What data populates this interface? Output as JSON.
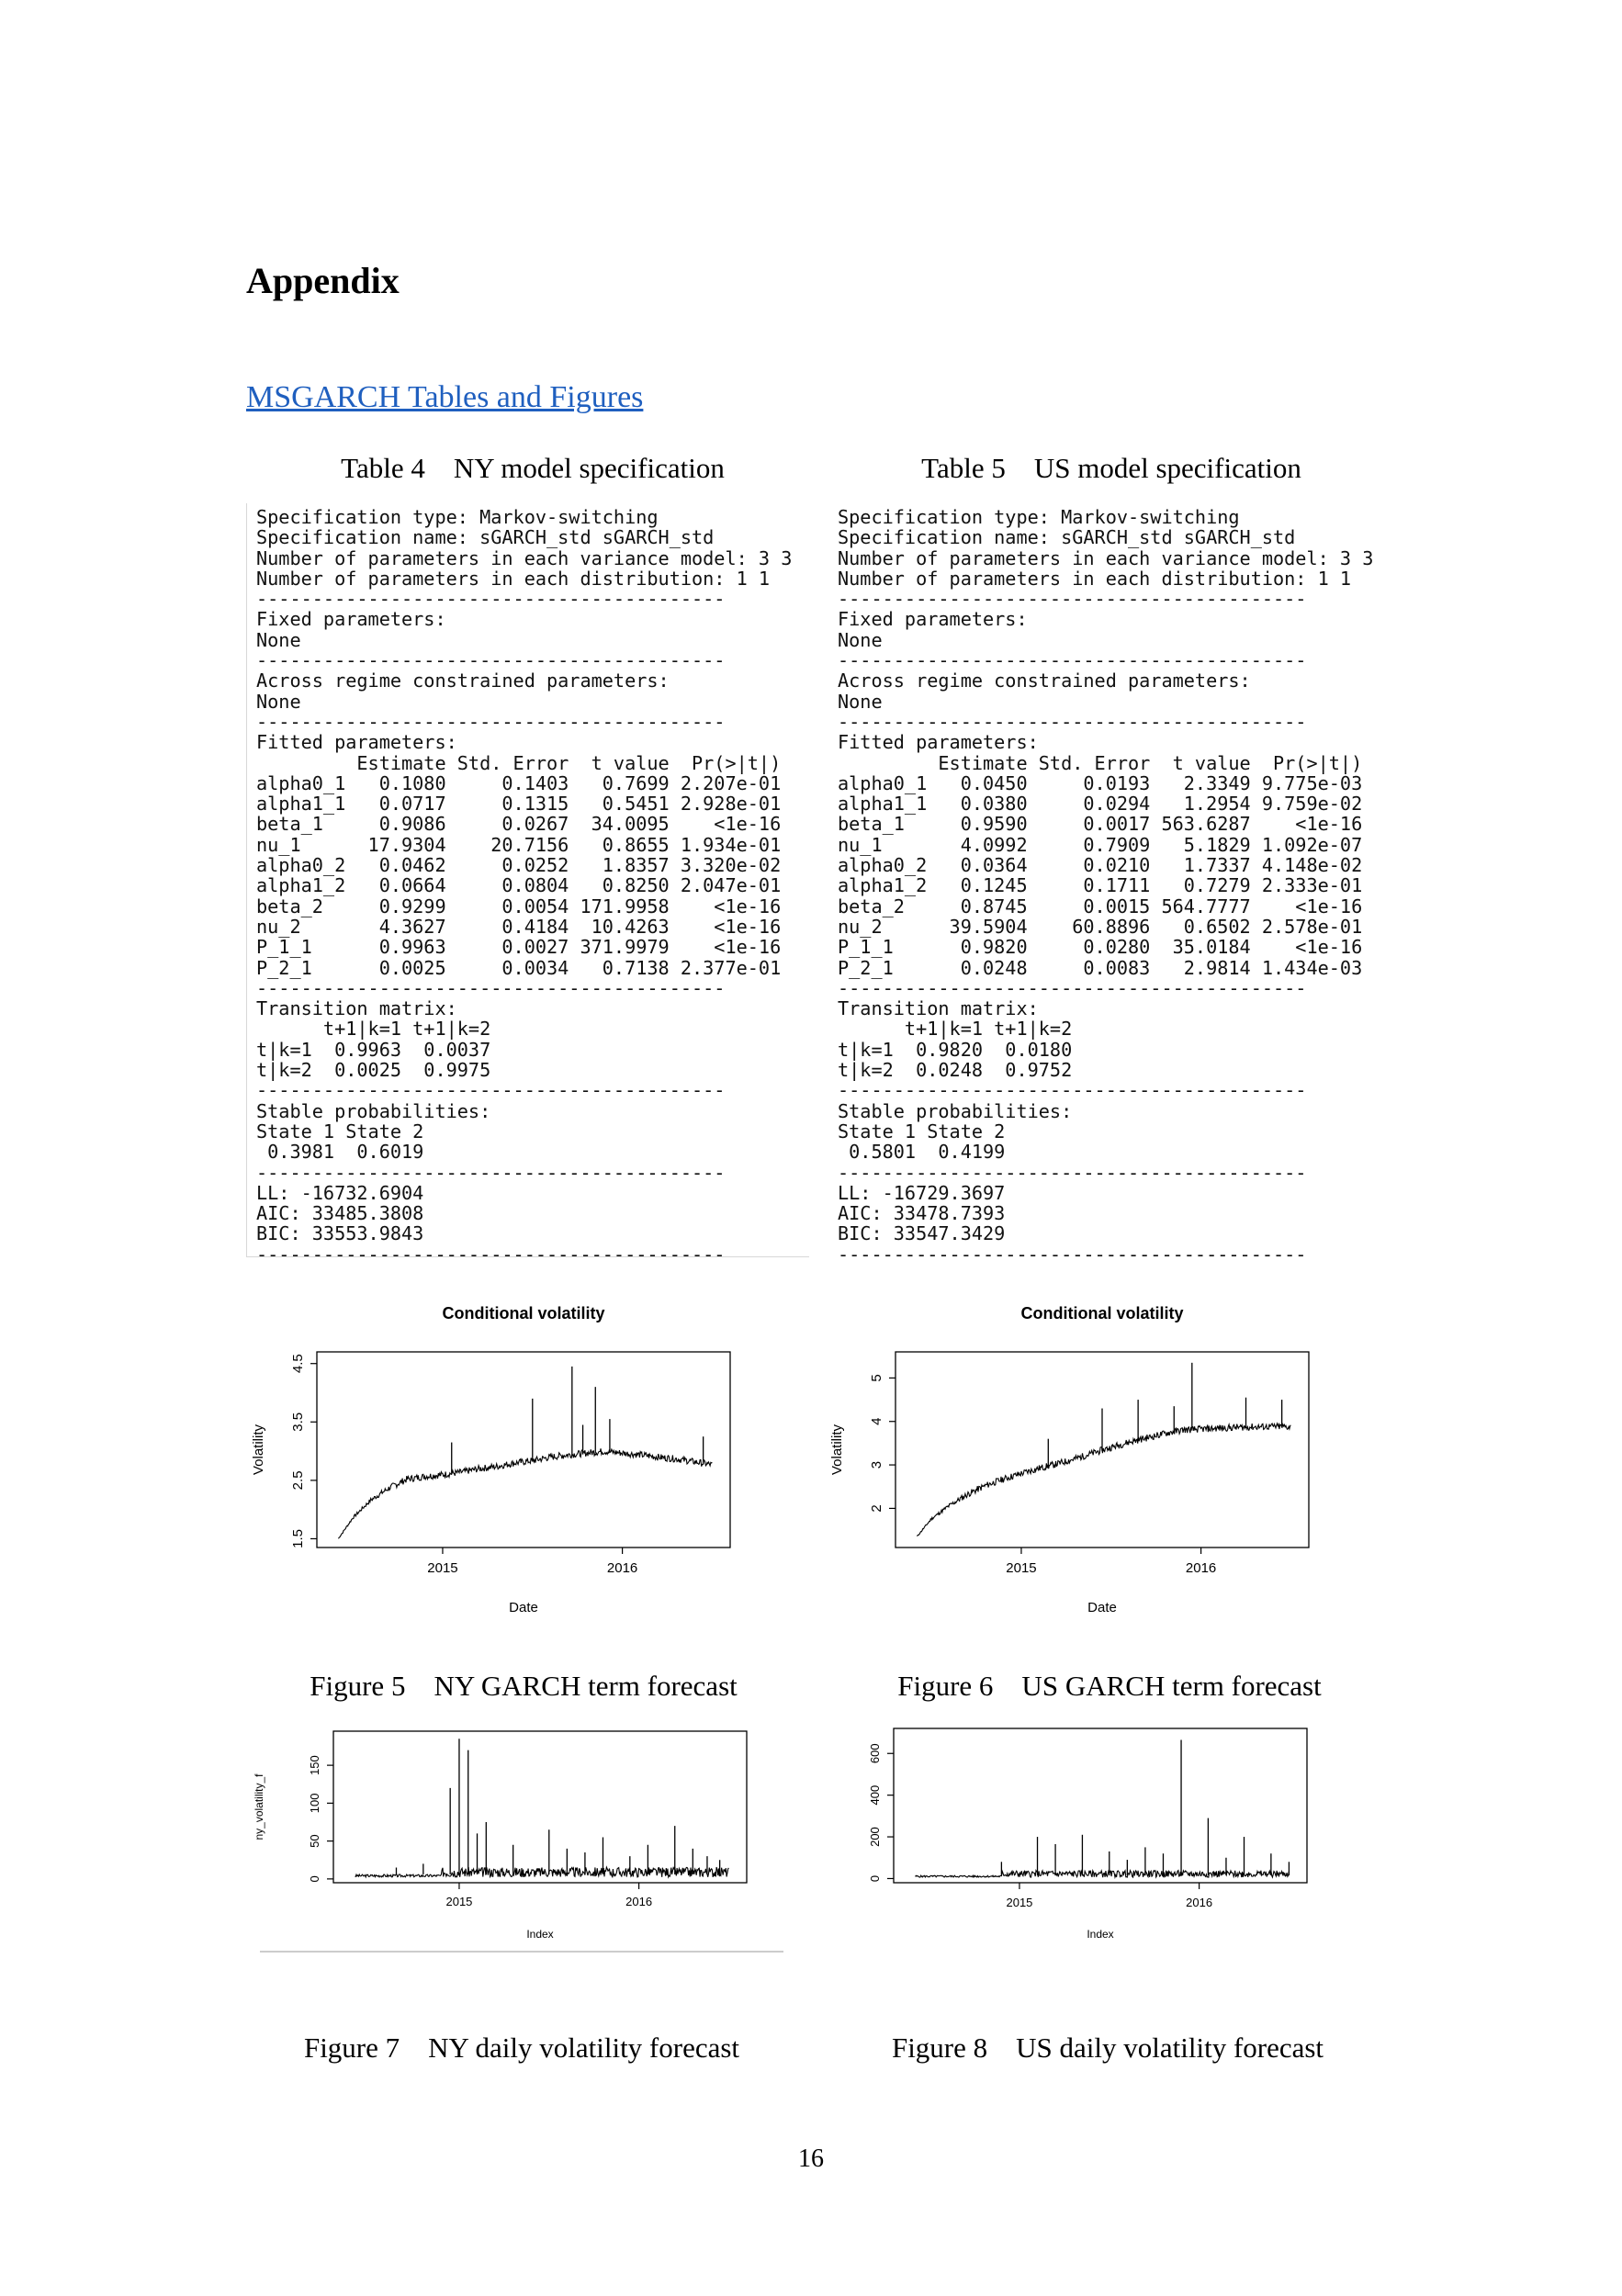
{
  "page": {
    "heading": "Appendix",
    "section_link": "MSGARCH Tables and Figures",
    "page_number": "16"
  },
  "tables": [
    {
      "caption": "Table 4    NY model specification",
      "output": "Specification type: Markov-switching\nSpecification name: sGARCH_std sGARCH_std\nNumber of parameters in each variance model: 3 3\nNumber of parameters in each distribution: 1 1\n------------------------------------------\nFixed parameters:\nNone\n------------------------------------------\nAcross regime constrained parameters:\nNone\n------------------------------------------\nFitted parameters:\n         Estimate Std. Error  t value  Pr(>|t|)\nalpha0_1   0.1080     0.1403   0.7699 2.207e-01\nalpha1_1   0.0717     0.1315   0.5451 2.928e-01\nbeta_1     0.9086     0.0267  34.0095    <1e-16\nnu_1      17.9304    20.7156   0.8655 1.934e-01\nalpha0_2   0.0462     0.0252   1.8357 3.320e-02\nalpha1_2   0.0664     0.0804   0.8250 2.047e-01\nbeta_2     0.9299     0.0054 171.9958    <1e-16\nnu_2       4.3627     0.4184  10.4263    <1e-16\nP_1_1      0.9963     0.0027 371.9979    <1e-16\nP_2_1      0.0025     0.0034   0.7138 2.377e-01\n------------------------------------------\nTransition matrix:\n      t+1|k=1 t+1|k=2\nt|k=1  0.9963  0.0037\nt|k=2  0.0025  0.9975\n------------------------------------------\nStable probabilities:\nState 1 State 2\n 0.3981  0.6019\n------------------------------------------\nLL: -16732.6904\nAIC: 33485.3808\nBIC: 33553.9843\n------------------------------------------"
    },
    {
      "caption": "Table 5    US model specification",
      "output": "Specification type: Markov-switching\nSpecification name: sGARCH_std sGARCH_std\nNumber of parameters in each variance model: 3 3\nNumber of parameters in each distribution: 1 1\n------------------------------------------\nFixed parameters:\nNone\n------------------------------------------\nAcross regime constrained parameters:\nNone\n------------------------------------------\nFitted parameters:\n         Estimate Std. Error  t value  Pr(>|t|)\nalpha0_1   0.0450     0.0193   2.3349 9.775e-03\nalpha1_1   0.0380     0.0294   1.2954 9.759e-02\nbeta_1     0.9590     0.0017 563.6287    <1e-16\nnu_1       4.0992     0.7909   5.1829 1.092e-07\nalpha0_2   0.0364     0.0210   1.7337 4.148e-02\nalpha1_2   0.1245     0.1711   0.7279 2.333e-01\nbeta_2     0.8745     0.0015 564.7777    <1e-16\nnu_2      39.5904    60.8896   0.6502 2.578e-01\nP_1_1      0.9820     0.0280  35.0184    <1e-16\nP_2_1      0.0248     0.0083   2.9814 1.434e-03\n------------------------------------------\nTransition matrix:\n      t+1|k=1 t+1|k=2\nt|k=1  0.9820  0.0180\nt|k=2  0.0248  0.9752\n------------------------------------------\nStable probabilities:\nState 1 State 2\n 0.5801  0.4199\n------------------------------------------\nLL: -16729.3697\nAIC: 33478.7393\nBIC: 33547.3429\n------------------------------------------"
    }
  ],
  "figure_captions": {
    "fig5": "Figure 5    NY GARCH term forecast",
    "fig6": "Figure 6    US GARCH term forecast",
    "fig7": "Figure 7    NY daily volatility forecast",
    "fig8": "Figure 8    US daily volatility forecast"
  },
  "chart_data": [
    {
      "id": "ny_conditional_volatility",
      "type": "line",
      "title": "Conditional volatility",
      "xlabel": "Date",
      "ylabel": "Volatility",
      "x_range": [
        2014.3,
        2016.6
      ],
      "ylim": [
        1.35,
        4.7
      ],
      "x_ticks": [
        2015,
        2016
      ],
      "x_tick_labels": [
        "2015",
        "2016"
      ],
      "y_ticks": [
        1.5,
        2.5,
        3.5,
        4.5
      ],
      "y_tick_labels": [
        "1.5",
        "2.5",
        "3.5",
        "4.5"
      ],
      "grid": false,
      "x": [
        2014.42,
        2014.5,
        2014.6,
        2014.7,
        2014.8,
        2014.9,
        2015.0,
        2015.1,
        2015.2,
        2015.3,
        2015.4,
        2015.5,
        2015.6,
        2015.7,
        2015.8,
        2015.9,
        2016.0,
        2016.1,
        2016.2,
        2016.3,
        2016.4,
        2016.5
      ],
      "y": [
        1.5,
        1.85,
        2.15,
        2.35,
        2.5,
        2.55,
        2.58,
        2.62,
        2.68,
        2.72,
        2.78,
        2.82,
        2.88,
        2.92,
        2.95,
        2.98,
        2.95,
        2.92,
        2.88,
        2.85,
        2.8,
        2.75
      ],
      "spikes": [
        [
          2015.72,
          4.45
        ],
        [
          2015.85,
          4.1
        ],
        [
          2015.5,
          3.9
        ],
        [
          2015.78,
          3.45
        ],
        [
          2016.45,
          3.25
        ],
        [
          2015.05,
          3.15
        ],
        [
          2015.93,
          3.55
        ]
      ]
    },
    {
      "id": "us_conditional_volatility",
      "type": "line",
      "title": "Conditional volatility",
      "xlabel": "Date",
      "ylabel": "Volatility",
      "x_range": [
        2014.3,
        2016.6
      ],
      "ylim": [
        1.1,
        5.6
      ],
      "x_ticks": [
        2015,
        2016
      ],
      "x_tick_labels": [
        "2015",
        "2016"
      ],
      "y_ticks": [
        2,
        3,
        4,
        5
      ],
      "y_tick_labels": [
        "2",
        "3",
        "4",
        "5"
      ],
      "grid": false,
      "x": [
        2014.42,
        2014.5,
        2014.6,
        2014.7,
        2014.8,
        2014.9,
        2015.0,
        2015.1,
        2015.2,
        2015.3,
        2015.4,
        2015.5,
        2015.6,
        2015.7,
        2015.8,
        2015.9,
        2016.0,
        2016.1,
        2016.2,
        2016.3,
        2016.4,
        2016.5
      ],
      "y": [
        1.35,
        1.75,
        2.05,
        2.3,
        2.5,
        2.65,
        2.78,
        2.9,
        3.0,
        3.12,
        3.25,
        3.38,
        3.5,
        3.6,
        3.7,
        3.78,
        3.8,
        3.82,
        3.84,
        3.85,
        3.86,
        3.85
      ],
      "spikes": [
        [
          2015.95,
          5.35
        ],
        [
          2015.45,
          4.3
        ],
        [
          2015.65,
          4.5
        ],
        [
          2016.25,
          4.55
        ],
        [
          2016.45,
          4.5
        ],
        [
          2015.15,
          3.6
        ],
        [
          2015.85,
          4.35
        ]
      ]
    },
    {
      "id": "ny_volatility_forecast",
      "type": "line",
      "title": "",
      "xlabel": "Index",
      "ylabel": "ny_volatility_f",
      "x_range": [
        2014.3,
        2016.6
      ],
      "ylim": [
        -5,
        195
      ],
      "x_ticks": [
        2015,
        2016
      ],
      "x_tick_labels": [
        "2015",
        "2016"
      ],
      "y_ticks": [
        0,
        50,
        100,
        150
      ],
      "y_tick_labels": [
        "0",
        "50",
        "100",
        "150"
      ],
      "grid": false,
      "baseline": 6,
      "spikes": [
        [
          2015.0,
          185
        ],
        [
          2015.05,
          170
        ],
        [
          2014.95,
          120
        ],
        [
          2015.15,
          75
        ],
        [
          2015.1,
          60
        ],
        [
          2015.3,
          45
        ],
        [
          2015.5,
          65
        ],
        [
          2015.6,
          40
        ],
        [
          2015.8,
          55
        ],
        [
          2015.95,
          30
        ],
        [
          2016.05,
          45
        ],
        [
          2016.2,
          70
        ],
        [
          2016.3,
          40
        ],
        [
          2016.45,
          25
        ],
        [
          2014.65,
          15
        ],
        [
          2014.8,
          20
        ],
        [
          2015.7,
          35
        ],
        [
          2016.38,
          30
        ]
      ]
    },
    {
      "id": "us_volatility_forecast",
      "type": "line",
      "title": "",
      "xlabel": "Index",
      "ylabel": "",
      "x_range": [
        2014.3,
        2016.6
      ],
      "ylim": [
        -20,
        720
      ],
      "x_ticks": [
        2015,
        2016
      ],
      "x_tick_labels": [
        "2015",
        "2016"
      ],
      "y_ticks": [
        0,
        200,
        400,
        600
      ],
      "y_tick_labels": [
        "0",
        "200",
        "400",
        "600"
      ],
      "grid": false,
      "baseline": 15,
      "spikes": [
        [
          2015.9,
          665
        ],
        [
          2016.05,
          290
        ],
        [
          2015.35,
          210
        ],
        [
          2015.1,
          200
        ],
        [
          2015.2,
          165
        ],
        [
          2015.5,
          130
        ],
        [
          2015.7,
          150
        ],
        [
          2016.25,
          200
        ],
        [
          2016.4,
          120
        ],
        [
          2014.9,
          80
        ],
        [
          2015.8,
          120
        ],
        [
          2016.15,
          100
        ],
        [
          2016.5,
          80
        ],
        [
          2015.6,
          90
        ]
      ]
    }
  ]
}
